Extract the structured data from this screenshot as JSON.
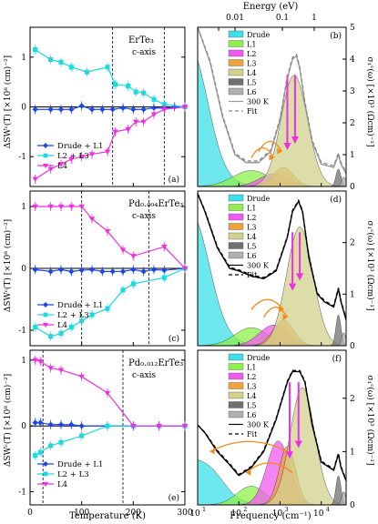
{
  "figure": {
    "top_axis_label": "Energy (eV)",
    "top_ticks": [
      "0.01",
      "0.1",
      "1"
    ],
    "left_xlabel": "Temperature (K)",
    "right_xlabel": "Frequency (cm⁻¹)",
    "left_ylabel": "ΔSWᶜ(T) [×10⁸ (cm)⁻²]",
    "right_ylabel": "σ₁ᶜ(ω) [×10³ (Ωcm)⁻¹]"
  },
  "chart_data": [
    {
      "id": "a",
      "type": "line",
      "panel_label": "(a)",
      "title": "ErTe₃",
      "subtitle": "c-axis",
      "xlim": [
        0,
        300
      ],
      "ylim": [
        -1.6,
        1.6
      ],
      "xticks": [
        0,
        100,
        200,
        300
      ],
      "yticks": [
        -1,
        0,
        1
      ],
      "vlines": [
        160,
        260
      ],
      "series": [
        {
          "name": "Drude + L1",
          "color": "#1c46e8",
          "marker": "diamond",
          "x": [
            10,
            40,
            60,
            80,
            100,
            120,
            140,
            160,
            180,
            200,
            220,
            240,
            260,
            280,
            300
          ],
          "y": [
            -0.05,
            -0.05,
            -0.05,
            -0.05,
            0.02,
            -0.05,
            -0.05,
            -0.05,
            -0.02,
            -0.05,
            -0.05,
            -0.02,
            -0.03,
            0.0,
            0.0
          ]
        },
        {
          "name": "L2 + L3",
          "color": "#1fd8e0",
          "marker": "square",
          "x": [
            10,
            40,
            60,
            80,
            110,
            150,
            165,
            190,
            205,
            220,
            240,
            260,
            300
          ],
          "y": [
            1.15,
            0.95,
            0.9,
            0.8,
            0.7,
            0.8,
            0.45,
            0.42,
            0.3,
            0.28,
            0.15,
            0.05,
            0.0
          ]
        },
        {
          "name": "L4",
          "color": "#ee2ee0",
          "marker": "triangle-down",
          "x": [
            10,
            40,
            60,
            80,
            100,
            120,
            150,
            165,
            190,
            205,
            220,
            240,
            260,
            300
          ],
          "y": [
            -1.45,
            -1.25,
            -1.15,
            -1.05,
            -1.0,
            -0.95,
            -0.9,
            -0.5,
            -0.45,
            -0.3,
            -0.3,
            -0.15,
            -0.05,
            0.0
          ]
        }
      ]
    },
    {
      "id": "c",
      "type": "line",
      "panel_label": "(c)",
      "title": "Pd₀.₀₀₄ErTe₃",
      "subtitle": "c-axis",
      "xlim": [
        0,
        300
      ],
      "ylim": [
        -1.25,
        1.25
      ],
      "xticks": [
        0,
        100,
        200,
        300
      ],
      "yticks": [
        -1,
        0,
        1
      ],
      "vlines": [
        100,
        230
      ],
      "series": [
        {
          "name": "Drude + L1",
          "color": "#1c46e8",
          "marker": "diamond",
          "x": [
            10,
            40,
            60,
            80,
            100,
            120,
            140,
            160,
            180,
            200,
            220,
            240,
            260,
            300
          ],
          "y": [
            -0.02,
            -0.05,
            -0.02,
            -0.05,
            -0.03,
            -0.02,
            -0.05,
            -0.05,
            -0.05,
            -0.02,
            -0.05,
            -0.02,
            -0.03,
            0.0
          ]
        },
        {
          "name": "L2 + L3",
          "color": "#1fd8e0",
          "marker": "square",
          "x": [
            10,
            40,
            60,
            80,
            100,
            120,
            150,
            180,
            200,
            260,
            300
          ],
          "y": [
            -0.95,
            -1.1,
            -1.05,
            -0.95,
            -0.85,
            -0.75,
            -0.65,
            -0.35,
            -0.25,
            -0.15,
            0.0
          ]
        },
        {
          "name": "L4",
          "color": "#ee2ee0",
          "marker": "triangle-down",
          "x": [
            10,
            40,
            60,
            80,
            100,
            120,
            150,
            180,
            200,
            260,
            300
          ],
          "y": [
            1.0,
            1.0,
            1.0,
            1.0,
            1.0,
            0.8,
            0.6,
            0.3,
            0.2,
            0.35,
            0.0
          ]
        }
      ]
    },
    {
      "id": "e",
      "type": "line",
      "panel_label": "(e)",
      "title": "Pd₀.₀₁₂ErTe₃",
      "subtitle": "c-axis",
      "xlim": [
        0,
        300
      ],
      "ylim": [
        -1.2,
        1.15
      ],
      "xticks": [
        0,
        100,
        200,
        300
      ],
      "yticks": [
        -1,
        0,
        1
      ],
      "vlines": [
        25,
        180
      ],
      "series": [
        {
          "name": "Drude + L1",
          "color": "#1c46e8",
          "marker": "diamond",
          "x": [
            10,
            20,
            40,
            60,
            80,
            100,
            150,
            200,
            250,
            300
          ],
          "y": [
            0.05,
            0.05,
            0.02,
            0.02,
            0.02,
            0.0,
            0.0,
            0.0,
            0.0,
            0.0
          ]
        },
        {
          "name": "L2 + L3",
          "color": "#1fd8e0",
          "marker": "square",
          "x": [
            10,
            20,
            40,
            60,
            100,
            150,
            200,
            250,
            300
          ],
          "y": [
            -0.45,
            -0.4,
            -0.3,
            -0.25,
            -0.15,
            0.0,
            0.0,
            0.0,
            0.0
          ]
        },
        {
          "name": "L4",
          "color": "#ee2ee0",
          "marker": "triangle-down",
          "x": [
            10,
            20,
            40,
            60,
            100,
            150,
            200,
            250,
            300
          ],
          "y": [
            1.0,
            0.98,
            0.88,
            0.85,
            0.75,
            0.5,
            0.0,
            0.0,
            0.0
          ]
        }
      ]
    },
    {
      "id": "b",
      "type": "area",
      "panel_label": "(b)",
      "xscale": "log",
      "xlim": [
        10,
        40000
      ],
      "ylim": [
        0,
        5
      ],
      "yticks": [
        0,
        1,
        2,
        3,
        4,
        5
      ],
      "legend": [
        "Drude",
        "L1",
        "L2",
        "L3",
        "L4",
        "L5",
        "L6",
        "300 K",
        "Fit"
      ],
      "components": [
        {
          "name": "Drude",
          "color": "#3ee0e8",
          "kind": "drude",
          "amp": 5.2,
          "width": 18
        },
        {
          "name": "L1",
          "color": "#8ef04a",
          "center": 200,
          "height": 0.5,
          "width": 0.45
        },
        {
          "name": "L2",
          "color": "#f05af0",
          "center": 700,
          "height": 0.4,
          "width": 0.35
        },
        {
          "name": "L3",
          "color": "#f0a23c",
          "center": 1200,
          "height": 0.6,
          "width": 0.25
        },
        {
          "name": "L4",
          "color": "#d2d28c",
          "center": 2200,
          "height": 3.5,
          "width": 0.32
        },
        {
          "name": "L5",
          "color": "#707070",
          "center": 26000,
          "height": 0.55,
          "width": 0.06
        },
        {
          "name": "L6",
          "color": "#b0b0b0",
          "center": 35000,
          "height": 0.3,
          "width": 0.05
        }
      ],
      "curve_300K": {
        "color": "#999999",
        "x": [
          10,
          20,
          40,
          80,
          150,
          300,
          600,
          1000,
          1500,
          2000,
          2500,
          3000,
          4000,
          6000,
          10000,
          20000,
          26000,
          30000,
          40000
        ],
        "y": [
          5.0,
          3.9,
          2.2,
          1.0,
          0.75,
          0.75,
          1.1,
          2.1,
          3.4,
          4.0,
          4.1,
          3.7,
          2.6,
          1.4,
          0.7,
          0.6,
          1.0,
          0.7,
          0.4
        ]
      },
      "curve_fit": {
        "color": "#8a8a8a",
        "x": [
          10,
          20,
          40,
          80,
          150,
          300,
          600,
          1000,
          1500,
          2000,
          2500,
          3000,
          4000,
          6000,
          10000,
          20000,
          26000,
          30000,
          40000
        ],
        "y": [
          5.0,
          3.95,
          2.25,
          1.05,
          0.8,
          0.8,
          1.15,
          2.15,
          3.45,
          4.05,
          4.15,
          3.75,
          2.65,
          1.45,
          0.75,
          0.65,
          1.05,
          0.75,
          0.45
        ]
      },
      "arrows_orange": [
        {
          "from": 200,
          "to": 700,
          "y": 0.9
        },
        {
          "from": 300,
          "to": 1100,
          "y": 1.1
        }
      ],
      "arrows_magenta": [
        {
          "x": 1500,
          "y_top": 3.5,
          "y_bot": 1.2
        },
        {
          "x": 2300,
          "y_top": 3.5,
          "y_bot": 1.4
        }
      ]
    },
    {
      "id": "d",
      "type": "area",
      "panel_label": "(d)",
      "xscale": "log",
      "xlim": [
        10,
        40000
      ],
      "ylim": [
        0,
        3
      ],
      "yticks": [
        0,
        1,
        2
      ],
      "legend": [
        "Drude",
        "L1",
        "L2",
        "L3",
        "L4",
        "L5",
        "L6",
        "300 K",
        "Fit"
      ],
      "components": [
        {
          "name": "Drude",
          "color": "#3ee0e8",
          "kind": "drude",
          "amp": 3.0,
          "width": 20
        },
        {
          "name": "L1",
          "color": "#8ef04a",
          "center": 200,
          "height": 0.35,
          "width": 0.4
        },
        {
          "name": "L2",
          "color": "#f05af0",
          "center": 700,
          "height": 0.4,
          "width": 0.35
        },
        {
          "name": "L3",
          "color": "#f0a23c",
          "center": 1200,
          "height": 0.5,
          "width": 0.25
        },
        {
          "name": "L4",
          "color": "#d2d28c",
          "center": 3000,
          "height": 2.3,
          "width": 0.32
        },
        {
          "name": "L5",
          "color": "#707070",
          "center": 26000,
          "height": 0.6,
          "width": 0.06
        },
        {
          "name": "L6",
          "color": "#b0b0b0",
          "center": 35000,
          "height": 0.25,
          "width": 0.05
        }
      ],
      "curve_300K": {
        "color": "#000000",
        "x": [
          10,
          15,
          30,
          60,
          100,
          200,
          400,
          800,
          1500,
          2000,
          2800,
          3500,
          5000,
          8000,
          12000,
          20000,
          26000,
          30000,
          40000
        ],
        "y": [
          2.95,
          2.6,
          1.9,
          1.5,
          1.45,
          1.35,
          1.3,
          1.45,
          2.1,
          2.6,
          2.8,
          2.6,
          1.7,
          1.0,
          0.85,
          0.75,
          1.1,
          0.85,
          0.5
        ]
      },
      "curve_fit": {
        "color": "#000000",
        "x": [
          10,
          15,
          30,
          60,
          100,
          200,
          400,
          800,
          1500,
          2000,
          2800,
          3500,
          5000,
          8000,
          12000,
          20000,
          26000,
          30000,
          40000
        ],
        "y": [
          2.95,
          2.62,
          1.92,
          1.52,
          1.47,
          1.37,
          1.32,
          1.47,
          2.12,
          2.62,
          2.82,
          2.62,
          1.72,
          1.02,
          0.87,
          0.77,
          1.12,
          0.87,
          0.52
        ]
      },
      "arrows_orange": [
        {
          "from": 200,
          "to": 1200,
          "y": 0.7
        },
        {
          "from": 400,
          "to": 1500,
          "y": 0.55
        }
      ],
      "arrows_magenta": [
        {
          "x": 2000,
          "y_top": 2.2,
          "y_bot": 1.1
        },
        {
          "x": 3000,
          "y_top": 2.2,
          "y_bot": 1.3
        }
      ]
    },
    {
      "id": "f",
      "type": "area",
      "panel_label": "(f)",
      "xscale": "log",
      "xlim": [
        10,
        40000
      ],
      "ylim": [
        0,
        2.9
      ],
      "yticks": [
        0,
        1,
        2
      ],
      "legend": [
        "Drude",
        "L1",
        "L2",
        "L3",
        "L4",
        "L5",
        "L6",
        "300 K",
        "Fit"
      ],
      "components": [
        {
          "name": "Drude",
          "color": "#3ee0e8",
          "kind": "drude",
          "amp": 0.9,
          "width": 40
        },
        {
          "name": "L1",
          "color": "#8ef04a",
          "center": 200,
          "height": 0.35,
          "width": 0.35
        },
        {
          "name": "L2",
          "color": "#f05af0",
          "center": 900,
          "height": 1.2,
          "width": 0.28
        },
        {
          "name": "L3",
          "color": "#f0a23c",
          "center": 1500,
          "height": 1.1,
          "width": 0.2
        },
        {
          "name": "L4",
          "color": "#d2d28c",
          "center": 3500,
          "height": 2.2,
          "width": 0.3
        },
        {
          "name": "L5",
          "color": "#707070",
          "center": 26000,
          "height": 0.55,
          "width": 0.06
        },
        {
          "name": "L6",
          "color": "#b0b0b0",
          "center": 35000,
          "height": 0.25,
          "width": 0.05
        }
      ],
      "curve_300K": {
        "color": "#000000",
        "x": [
          10,
          15,
          30,
          60,
          100,
          200,
          400,
          800,
          1500,
          2000,
          3000,
          4000,
          6000,
          10000,
          20000,
          26000,
          30000,
          40000
        ],
        "y": [
          1.5,
          1.35,
          1.0,
          0.75,
          0.55,
          0.7,
          1.0,
          1.6,
          2.3,
          2.5,
          2.5,
          2.3,
          1.5,
          0.8,
          0.65,
          0.95,
          0.7,
          0.45
        ]
      },
      "curve_fit": {
        "color": "#000000",
        "x": [
          10,
          15,
          30,
          60,
          100,
          200,
          400,
          800,
          1500,
          2000,
          3000,
          4000,
          6000,
          10000,
          20000,
          26000,
          30000,
          40000
        ],
        "y": [
          1.5,
          1.36,
          1.02,
          0.77,
          0.57,
          0.72,
          1.02,
          1.62,
          2.32,
          2.52,
          2.52,
          2.32,
          1.52,
          0.82,
          0.67,
          0.97,
          0.72,
          0.47
        ]
      },
      "arrows_orange": [
        {
          "from": 1500,
          "to": 20,
          "y": 1.0
        },
        {
          "from": 2000,
          "to": 150,
          "y": 0.6
        }
      ],
      "arrows_magenta": [
        {
          "x": 1700,
          "y_top": 2.3,
          "y_bot": 0.9
        },
        {
          "x": 2800,
          "y_top": 2.3,
          "y_bot": 1.1
        }
      ]
    }
  ]
}
